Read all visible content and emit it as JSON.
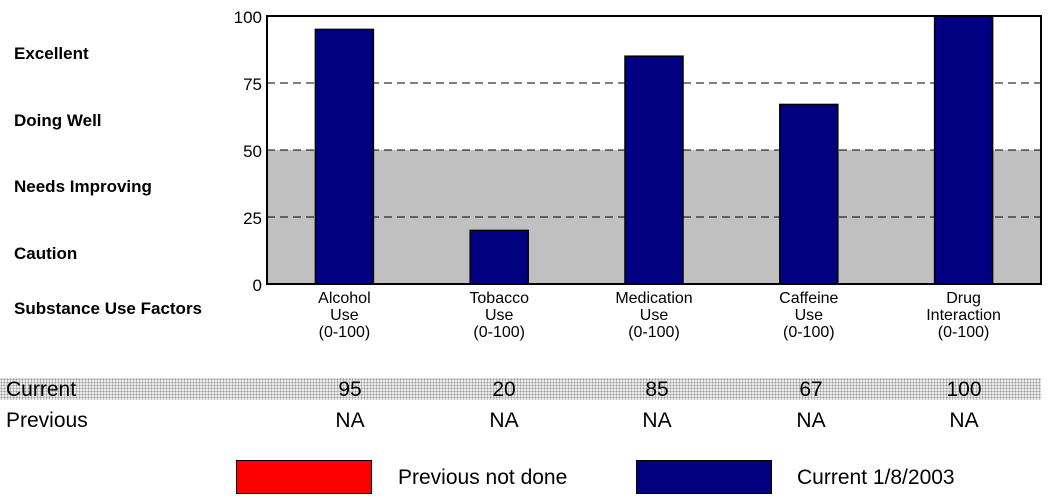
{
  "chart_data": {
    "type": "bar",
    "title": "",
    "categories": [
      [
        "Alcohol",
        "Use",
        "(0-100)"
      ],
      [
        "Tobacco",
        "Use",
        "(0-100)"
      ],
      [
        "Medication",
        "Use",
        "(0-100)"
      ],
      [
        "Caffeine",
        "Use",
        "(0-100)"
      ],
      [
        "Drug",
        "Interaction",
        "(0-100)"
      ]
    ],
    "series": [
      {
        "name": "Current 1/8/2003",
        "color": "#000080",
        "values": [
          95,
          20,
          85,
          67,
          100
        ]
      }
    ],
    "ylim": [
      0,
      100
    ],
    "yticks": [
      "0",
      "25",
      "50",
      "75",
      "100"
    ],
    "shaded_band": [
      0,
      50
    ],
    "grid": "dashed horizontal at each tick"
  },
  "rating_labels": [
    "Excellent",
    "Doing Well",
    "Needs Improving",
    "Caution"
  ],
  "x_axis_label": "Substance Use Factors",
  "table": {
    "current_label": "Current",
    "current_values": [
      "95",
      "20",
      "85",
      "67",
      "100"
    ],
    "previous_label": "Previous",
    "previous_values": [
      "NA",
      "NA",
      "NA",
      "NA",
      "NA"
    ]
  },
  "legend": {
    "previous": {
      "label": "Previous not done",
      "color": "#ff0000"
    },
    "current": {
      "label": "Current 1/8/2003",
      "color": "#000080"
    }
  }
}
